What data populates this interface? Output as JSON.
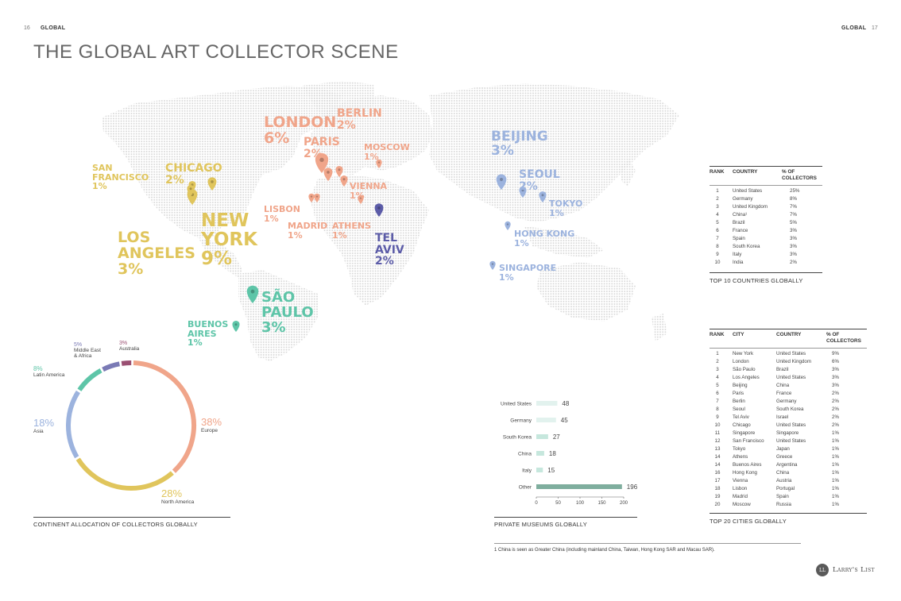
{
  "header": {
    "left_page": "16",
    "left_label": "GLOBAL",
    "right_label": "GLOBAL",
    "right_page": "17"
  },
  "title": "THE GLOBAL ART COLLECTOR SCENE",
  "colors": {
    "americas": "#e0c55c",
    "europe": "#f0a58a",
    "europe_dark": "#e0806a",
    "asia": "#9cb3de",
    "latin": "#5ec5a8",
    "middle_east": "#5c5ca8",
    "australia": "#9a4f72",
    "map_dots": "#d8d8d8"
  },
  "map_cities": [
    {
      "name": "NEW\nYORK",
      "pct": "9%",
      "color": "#e0c55c"
    },
    {
      "name": "LOS\nANGELES",
      "pct": "3%",
      "color": "#e0c55c"
    },
    {
      "name": "CHICAGO",
      "pct": "2%",
      "color": "#e0c55c"
    },
    {
      "name": "SAN\nFRANCISCO",
      "pct": "1%",
      "color": "#e0c55c"
    },
    {
      "name": "LONDON",
      "pct": "6%",
      "color": "#f0a58a"
    },
    {
      "name": "BERLIN",
      "pct": "2%",
      "color": "#f0a58a"
    },
    {
      "name": "PARIS",
      "pct": "2%",
      "color": "#f0a58a"
    },
    {
      "name": "MOSCOW",
      "pct": "1%",
      "color": "#f0a58a"
    },
    {
      "name": "VIENNA",
      "pct": "1%",
      "color": "#f0a58a"
    },
    {
      "name": "LISBON",
      "pct": "1%",
      "color": "#f0a58a"
    },
    {
      "name": "MADRID",
      "pct": "1%",
      "color": "#f0a58a"
    },
    {
      "name": "ATHENS",
      "pct": "1%",
      "color": "#f0a58a"
    },
    {
      "name": "TEL\nAVIV",
      "pct": "2%",
      "color": "#5c5ca8"
    },
    {
      "name": "BEIJING",
      "pct": "3%",
      "color": "#9cb3de"
    },
    {
      "name": "SEOUL",
      "pct": "2%",
      "color": "#9cb3de"
    },
    {
      "name": "TOKYO",
      "pct": "1%",
      "color": "#9cb3de"
    },
    {
      "name": "HONG KONG",
      "pct": "1%",
      "color": "#9cb3de"
    },
    {
      "name": "SINGAPORE",
      "pct": "1%",
      "color": "#9cb3de"
    },
    {
      "name": "SÃO\nPAULO",
      "pct": "3%",
      "color": "#5ec5a8"
    },
    {
      "name": "BUENOS\nAIRES",
      "pct": "1%",
      "color": "#5ec5a8"
    }
  ],
  "chart_data": [
    {
      "type": "pie",
      "variant": "donut",
      "caption": "CONTINENT ALLOCATION OF COLLECTORS GLOBALLY",
      "slices": [
        {
          "label": "Europe",
          "value": 38,
          "pct": "38%",
          "color": "#f0a58a"
        },
        {
          "label": "North America",
          "value": 28,
          "pct": "28%",
          "color": "#e0c55c"
        },
        {
          "label": "Asia",
          "value": 18,
          "pct": "18%",
          "color": "#9cb3de"
        },
        {
          "label": "Latin America",
          "value": 8,
          "pct": "8%",
          "color": "#5ec5a8"
        },
        {
          "label": "Middle East\n& Africa",
          "value": 5,
          "pct": "5%",
          "color": "#7a7ab5"
        },
        {
          "label": "Australia",
          "value": 3,
          "pct": "3%",
          "color": "#9a4f72"
        }
      ]
    },
    {
      "type": "bar",
      "orientation": "horizontal",
      "caption": "PRIVATE MUSEUMS GLOBALLY",
      "categories": [
        "United States",
        "Germany",
        "South Korea",
        "China",
        "Italy",
        "Other"
      ],
      "values": [
        48,
        45,
        27,
        18,
        15,
        196
      ],
      "xlim": [
        0,
        200
      ],
      "xticks": [
        "0",
        "50",
        "100",
        "150",
        "200"
      ]
    },
    {
      "type": "table",
      "caption": "TOP 10 COUNTRIES GLOBALLY",
      "headers": [
        "RANK",
        "COUNTRY",
        "% OF\nCOLLECTORS"
      ],
      "rows": [
        [
          "1",
          "United States",
          "25%"
        ],
        [
          "2",
          "Germany",
          "8%"
        ],
        [
          "3",
          "United Kingdom",
          "7%"
        ],
        [
          "4",
          "China¹",
          "7%"
        ],
        [
          "5",
          "Brazil",
          "5%"
        ],
        [
          "6",
          "France",
          "3%"
        ],
        [
          "7",
          "Spain",
          "3%"
        ],
        [
          "8",
          "South Korea",
          "3%"
        ],
        [
          "9",
          "Italy",
          "3%"
        ],
        [
          "10",
          "India",
          "2%"
        ]
      ]
    },
    {
      "type": "table",
      "caption": "TOP 20 CITIES GLOBALLY",
      "headers": [
        "RANK",
        "CITY",
        "COUNTRY",
        "% OF\nCOLLECTORS"
      ],
      "rows": [
        [
          "1",
          "New York",
          "United States",
          "9%"
        ],
        [
          "2",
          "London",
          "United Kingdom",
          "6%"
        ],
        [
          "3",
          "São Paulo",
          "Brazil",
          "3%"
        ],
        [
          "4",
          "Los Angeles",
          "United States",
          "3%"
        ],
        [
          "5",
          "Beijing",
          "China",
          "3%"
        ],
        [
          "6",
          "Paris",
          "France",
          "2%"
        ],
        [
          "7",
          "Berlin",
          "Germany",
          "2%"
        ],
        [
          "8",
          "Seoul",
          "South Korea",
          "2%"
        ],
        [
          "9",
          "Tel Aviv",
          "Israel",
          "2%"
        ],
        [
          "10",
          "Chicago",
          "United States",
          "2%"
        ],
        [
          "11",
          "Singapore",
          "Singapore",
          "1%"
        ],
        [
          "12",
          "San Francisco",
          "United States",
          "1%"
        ],
        [
          "13",
          "Tokyo",
          "Japan",
          "1%"
        ],
        [
          "14",
          "Athens",
          "Greece",
          "1%"
        ],
        [
          "14",
          "Buenos Aires",
          "Argentina",
          "1%"
        ],
        [
          "16",
          "Hong Kong",
          "China",
          "1%"
        ],
        [
          "17",
          "Vienna",
          "Austria",
          "1%"
        ],
        [
          "18",
          "Lisbon",
          "Portugal",
          "1%"
        ],
        [
          "19",
          "Madrid",
          "Spain",
          "1%"
        ],
        [
          "20",
          "Moscow",
          "Russia",
          "1%"
        ]
      ]
    }
  ],
  "footnote": "1  China is seen as Greater China (including mainland China, Taiwan, Hong Kong SAR and Macau SAR).",
  "logo": {
    "mark": "LL",
    "text": "Larry's List"
  }
}
